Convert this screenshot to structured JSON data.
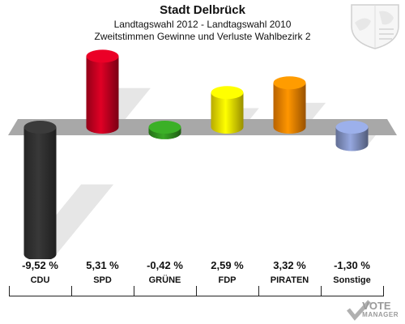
{
  "header": {
    "title": "Stadt Delbrück",
    "subtitle": "Landtagswahl 2012 - Landtagswahl 2010",
    "subtitle2": "Zweitstimmen Gewinne und Verluste Wahlbezirk 2"
  },
  "chart_data": {
    "type": "bar",
    "categories": [
      "CDU",
      "SPD",
      "GRÜNE",
      "FDP",
      "PIRATEN",
      "Sonstige"
    ],
    "values": [
      -9.52,
      5.31,
      -0.42,
      2.59,
      3.32,
      -1.3
    ],
    "value_labels": [
      "-9,52 %",
      "5,31 %",
      "-0,42 %",
      "2,59 %",
      "3,32 %",
      "-1,30 %"
    ],
    "colors": [
      "#333333",
      "#cc0022",
      "#339922",
      "#ffee00",
      "#ff8800",
      "#8899cc"
    ],
    "ylim": [
      -10,
      6
    ],
    "grid": false,
    "legend": "none"
  },
  "branding": {
    "vote_logo_line1": "VOTE",
    "vote_logo_line2": "MANAGER",
    "crest_icon": "nrw-crest-icon"
  }
}
